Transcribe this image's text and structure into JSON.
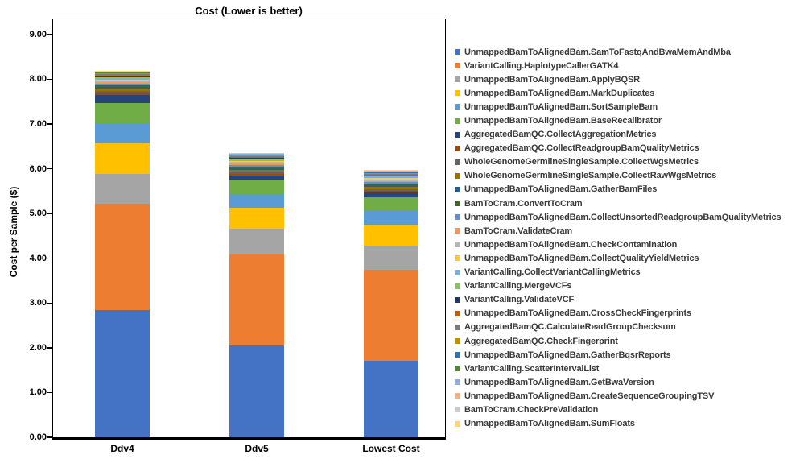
{
  "page": {
    "title": "Cost (Lower is better)"
  },
  "chart_data": {
    "type": "bar",
    "stacked": true,
    "title": "Cost (Lower is better)",
    "xlabel": "",
    "ylabel": "Cost per Sample ($)",
    "ylim": [
      0,
      9.33
    ],
    "ytick_values": [
      0,
      1,
      2,
      3,
      4,
      5,
      6,
      7,
      8,
      9
    ],
    "ytick_labels": [
      "0.00",
      "1.00",
      "2.00",
      "3.00",
      "4.00",
      "5.00",
      "6.00",
      "7.00",
      "8.00",
      "9.00"
    ],
    "grid": false,
    "legend_position": "right",
    "categories": [
      "Ddv4",
      "Ddv5",
      "Lowest Cost"
    ],
    "category_totals": [
      8.19,
      6.36,
      5.97
    ],
    "series": [
      {
        "name": "UnmappedBamToAlignedBam.SamToFastqAndBwaMemAndMba",
        "color": "#4472C4",
        "values": [
          2.85,
          2.06,
          1.71
        ]
      },
      {
        "name": "VariantCalling.HaplotypeCallerGATK4",
        "color": "#ED7D31",
        "values": [
          2.37,
          2.03,
          2.03
        ]
      },
      {
        "name": "UnmappedBamToAlignedBam.ApplyBQSR",
        "color": "#A5A5A5",
        "values": [
          0.66,
          0.57,
          0.55
        ]
      },
      {
        "name": "UnmappedBamToAlignedBam.MarkDuplicates",
        "color": "#FFC000",
        "values": [
          0.68,
          0.47,
          0.46
        ]
      },
      {
        "name": "UnmappedBamToAlignedBam.SortSampleBam",
        "color": "#5B9BD5",
        "values": [
          0.45,
          0.31,
          0.3
        ]
      },
      {
        "name": "UnmappedBamToAlignedBam.BaseRecalibrator",
        "color": "#70AD47",
        "values": [
          0.45,
          0.3,
          0.32
        ]
      },
      {
        "name": "AggregatedBamQC.CollectAggregationMetrics",
        "color": "#264478",
        "values": [
          0.18,
          0.11,
          0.1
        ]
      },
      {
        "name": "AggregatedBamQC.CollectReadgroupBamQualityMetrics",
        "color": "#9E480E",
        "values": [
          0.05,
          0.04,
          0.04
        ]
      },
      {
        "name": "WholeGenomeGermlineSingleSample.CollectWgsMetrics",
        "color": "#636363",
        "values": [
          0.05,
          0.04,
          0.04
        ]
      },
      {
        "name": "WholeGenomeGermlineSingleSample.CollectRawWgsMetrics",
        "color": "#997300",
        "values": [
          0.05,
          0.04,
          0.04
        ]
      },
      {
        "name": "UnmappedBamToAlignedBam.GatherBamFiles",
        "color": "#255E91",
        "values": [
          0.04,
          0.04,
          0.04
        ]
      },
      {
        "name": "BamToCram.ConvertToCram",
        "color": "#43682B",
        "values": [
          0.04,
          0.04,
          0.04
        ]
      },
      {
        "name": "UnmappedBamToAlignedBam.CollectUnsortedReadgroupBamQualityMetrics",
        "color": "#698ED0",
        "values": [
          0.04,
          0.04,
          0.04
        ]
      },
      {
        "name": "BamToCram.ValidateCram",
        "color": "#F1975A",
        "values": [
          0.03,
          0.03,
          0.02
        ]
      },
      {
        "name": "UnmappedBamToAlignedBam.CheckContamination",
        "color": "#B7B7B7",
        "values": [
          0.03,
          0.03,
          0.03
        ]
      },
      {
        "name": "UnmappedBamToAlignedBam.CollectQualityYieldMetrics",
        "color": "#FFCD33",
        "values": [
          0.03,
          0.03,
          0.03
        ]
      },
      {
        "name": "VariantCalling.CollectVariantCallingMetrics",
        "color": "#7CAFDD",
        "values": [
          0.03,
          0.02,
          0.02
        ]
      },
      {
        "name": "VariantCalling.MergeVCFs",
        "color": "#8CC168",
        "values": [
          0.02,
          0.02,
          0.02
        ]
      },
      {
        "name": "VariantCalling.ValidateVCF",
        "color": "#1F3864",
        "values": [
          0.02,
          0.02,
          0.02
        ]
      },
      {
        "name": "UnmappedBamToAlignedBam.CrossCheckFingerprints",
        "color": "#C55A11",
        "values": [
          0.02,
          0.02,
          0.02
        ]
      },
      {
        "name": "AggregatedBamQC.CalculateReadGroupChecksum",
        "color": "#7B7B7B",
        "values": [
          0.02,
          0.02,
          0.02
        ]
      },
      {
        "name": "AggregatedBamQC.CheckFingerprint",
        "color": "#BF8F00",
        "values": [
          0.02,
          0.02,
          0.02
        ]
      },
      {
        "name": "UnmappedBamToAlignedBam.GatherBqsrReports",
        "color": "#2E75B6",
        "values": [
          0.01,
          0.01,
          0.01
        ]
      },
      {
        "name": "VariantCalling.ScatterIntervalList",
        "color": "#548235",
        "values": [
          0.01,
          0.01,
          0.01
        ]
      },
      {
        "name": "UnmappedBamToAlignedBam.GetBwaVersion",
        "color": "#8FAADC",
        "values": [
          0.01,
          0.01,
          0.01
        ]
      },
      {
        "name": "UnmappedBamToAlignedBam.CreateSequenceGroupingTSV",
        "color": "#F4B183",
        "values": [
          0.01,
          0.01,
          0.01
        ]
      },
      {
        "name": "BamToCram.CheckPreValidation",
        "color": "#C9C9C9",
        "values": [
          0.01,
          0.01,
          0.01
        ]
      },
      {
        "name": "UnmappedBamToAlignedBam.SumFloats",
        "color": "#FFD966",
        "values": [
          0.01,
          0.01,
          0.01
        ]
      }
    ]
  }
}
